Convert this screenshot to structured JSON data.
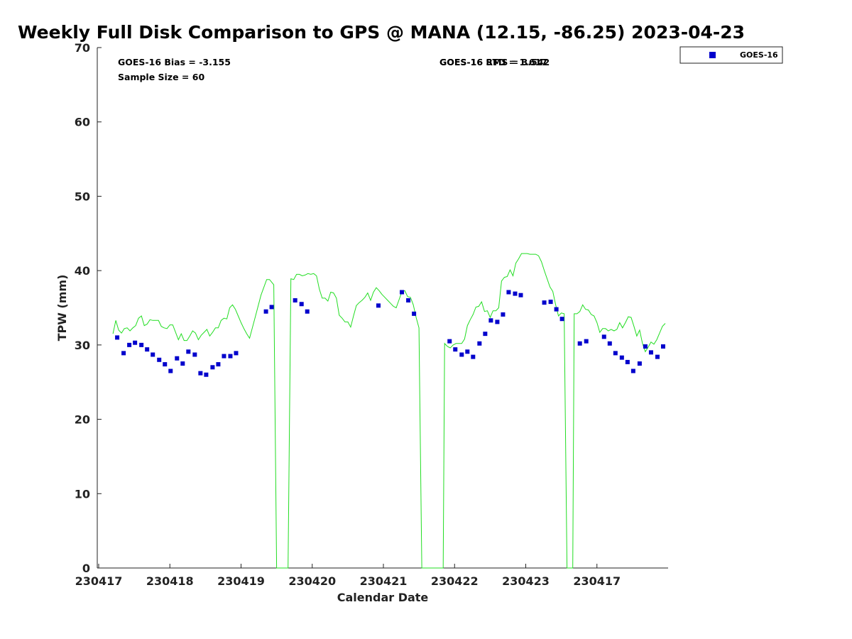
{
  "chart_data": {
    "type": "scatter",
    "title": "Weekly Full Disk Comparison to GPS @ MANA (12.15, -86.25) 2023-04-23",
    "xlabel": "Calendar Date",
    "ylabel": "TPW (mm)",
    "xlim": [
      -0.02,
      8.0
    ],
    "ylim": [
      0,
      70
    ],
    "yticks": [
      0,
      10,
      20,
      30,
      40,
      50,
      60,
      70
    ],
    "xtick_positions": [
      0,
      1,
      2,
      3,
      4,
      5,
      6,
      7
    ],
    "xtick_labels": [
      "230417",
      "230418",
      "230419",
      "230420",
      "230421",
      "230422",
      "230423",
      "230417"
    ],
    "grid": false,
    "legend": {
      "position": "top-right",
      "entries": [
        {
          "label": "GOES-16",
          "color": "#0000cc",
          "marker": "square"
        }
      ]
    },
    "annotations": {
      "bias": "GOES-16 Bias = -3.155",
      "sample_size": "Sample Size = 60",
      "std": "GOES-16 STD = 1.617",
      "rms": "GOES-16 RMS = 3.542"
    },
    "series": [
      {
        "name": "GOES-16",
        "kind": "scatter",
        "color": "#0000cc",
        "points": [
          [
            0.26,
            31.0
          ],
          [
            0.35,
            28.9
          ],
          [
            0.43,
            30.0
          ],
          [
            0.51,
            30.3
          ],
          [
            0.6,
            30.0
          ],
          [
            0.68,
            29.4
          ],
          [
            0.76,
            28.7
          ],
          [
            0.85,
            28.0
          ],
          [
            0.93,
            27.4
          ],
          [
            1.01,
            26.5
          ],
          [
            1.1,
            28.2
          ],
          [
            1.18,
            27.5
          ],
          [
            1.26,
            29.1
          ],
          [
            1.35,
            28.7
          ],
          [
            1.43,
            26.2
          ],
          [
            1.51,
            26.0
          ],
          [
            1.6,
            27.0
          ],
          [
            1.68,
            27.4
          ],
          [
            1.76,
            28.5
          ],
          [
            1.85,
            28.5
          ],
          [
            1.93,
            28.9
          ],
          [
            2.35,
            34.5
          ],
          [
            2.43,
            35.1
          ],
          [
            2.76,
            36.0
          ],
          [
            2.85,
            35.5
          ],
          [
            2.93,
            34.5
          ],
          [
            3.93,
            35.3
          ],
          [
            4.26,
            37.1
          ],
          [
            4.35,
            36.0
          ],
          [
            4.43,
            34.2
          ],
          [
            4.93,
            30.5
          ],
          [
            5.01,
            29.4
          ],
          [
            5.1,
            28.7
          ],
          [
            5.18,
            29.1
          ],
          [
            5.26,
            28.4
          ],
          [
            5.35,
            30.2
          ],
          [
            5.43,
            31.5
          ],
          [
            5.51,
            33.3
          ],
          [
            5.6,
            33.1
          ],
          [
            5.68,
            34.1
          ],
          [
            5.76,
            37.1
          ],
          [
            5.85,
            36.9
          ],
          [
            5.93,
            36.7
          ],
          [
            6.26,
            35.7
          ],
          [
            6.35,
            35.8
          ],
          [
            6.43,
            34.8
          ],
          [
            6.51,
            33.5
          ],
          [
            6.76,
            30.2
          ],
          [
            6.85,
            30.5
          ],
          [
            7.1,
            31.1
          ],
          [
            7.18,
            30.2
          ],
          [
            7.26,
            28.9
          ],
          [
            7.35,
            28.3
          ],
          [
            7.43,
            27.7
          ],
          [
            7.51,
            26.5
          ],
          [
            7.6,
            27.5
          ],
          [
            7.68,
            29.8
          ],
          [
            7.76,
            29.0
          ],
          [
            7.85,
            28.4
          ],
          [
            7.93,
            29.8
          ]
        ]
      },
      {
        "name": "GPS",
        "kind": "line",
        "color": "#22dd22",
        "points": [
          [
            0.2,
            31.5
          ],
          [
            0.24,
            33.3
          ],
          [
            0.28,
            32.0
          ],
          [
            0.32,
            31.6
          ],
          [
            0.36,
            32.2
          ],
          [
            0.4,
            32.3
          ],
          [
            0.44,
            31.9
          ],
          [
            0.48,
            32.3
          ],
          [
            0.52,
            32.6
          ],
          [
            0.56,
            33.6
          ],
          [
            0.6,
            33.9
          ],
          [
            0.64,
            32.6
          ],
          [
            0.68,
            32.8
          ],
          [
            0.72,
            33.4
          ],
          [
            0.76,
            33.3
          ],
          [
            0.8,
            33.3
          ],
          [
            0.84,
            33.3
          ],
          [
            0.88,
            32.5
          ],
          [
            0.92,
            32.3
          ],
          [
            0.96,
            32.2
          ],
          [
            1.0,
            32.7
          ],
          [
            1.04,
            32.7
          ],
          [
            1.08,
            31.7
          ],
          [
            1.12,
            30.7
          ],
          [
            1.16,
            31.5
          ],
          [
            1.2,
            30.6
          ],
          [
            1.24,
            30.6
          ],
          [
            1.28,
            31.2
          ],
          [
            1.32,
            31.9
          ],
          [
            1.36,
            31.6
          ],
          [
            1.4,
            30.7
          ],
          [
            1.44,
            31.3
          ],
          [
            1.48,
            31.7
          ],
          [
            1.52,
            32.1
          ],
          [
            1.56,
            31.2
          ],
          [
            1.6,
            31.7
          ],
          [
            1.64,
            32.3
          ],
          [
            1.68,
            32.3
          ],
          [
            1.72,
            33.3
          ],
          [
            1.76,
            33.6
          ],
          [
            1.8,
            33.5
          ],
          [
            1.84,
            35.0
          ],
          [
            1.88,
            35.4
          ],
          [
            1.92,
            34.8
          ],
          [
            1.96,
            33.9
          ],
          [
            2.0,
            33.0
          ],
          [
            2.04,
            32.2
          ],
          [
            2.08,
            31.5
          ],
          [
            2.12,
            30.9
          ],
          [
            2.2,
            33.8
          ],
          [
            2.28,
            36.7
          ],
          [
            2.36,
            38.8
          ],
          [
            2.4,
            38.8
          ],
          [
            2.46,
            38.1
          ],
          [
            2.5,
            0
          ],
          [
            2.66,
            0
          ],
          [
            2.7,
            38.9
          ],
          [
            2.74,
            38.8
          ],
          [
            2.78,
            39.5
          ],
          [
            2.82,
            39.5
          ],
          [
            2.86,
            39.3
          ],
          [
            2.9,
            39.4
          ],
          [
            2.94,
            39.6
          ],
          [
            2.98,
            39.5
          ],
          [
            3.02,
            39.6
          ],
          [
            3.06,
            39.3
          ],
          [
            3.1,
            37.5
          ],
          [
            3.14,
            36.3
          ],
          [
            3.18,
            36.3
          ],
          [
            3.22,
            35.9
          ],
          [
            3.26,
            37.1
          ],
          [
            3.3,
            37.0
          ],
          [
            3.34,
            36.3
          ],
          [
            3.38,
            34.0
          ],
          [
            3.42,
            33.6
          ],
          [
            3.46,
            33.1
          ],
          [
            3.5,
            33.1
          ],
          [
            3.54,
            32.4
          ],
          [
            3.58,
            33.9
          ],
          [
            3.62,
            35.3
          ],
          [
            3.66,
            35.7
          ],
          [
            3.7,
            36.0
          ],
          [
            3.74,
            36.4
          ],
          [
            3.78,
            37.0
          ],
          [
            3.82,
            36.0
          ],
          [
            3.86,
            37.1
          ],
          [
            3.9,
            37.7
          ],
          [
            3.94,
            37.3
          ],
          [
            3.98,
            36.8
          ],
          [
            4.02,
            36.4
          ],
          [
            4.06,
            36.0
          ],
          [
            4.1,
            35.6
          ],
          [
            4.14,
            35.2
          ],
          [
            4.18,
            35.0
          ],
          [
            4.22,
            36.1
          ],
          [
            4.26,
            37.2
          ],
          [
            4.3,
            37.3
          ],
          [
            4.34,
            36.5
          ],
          [
            4.38,
            36.4
          ],
          [
            4.42,
            35.4
          ],
          [
            4.46,
            33.7
          ],
          [
            4.5,
            32.3
          ],
          [
            4.54,
            0
          ],
          [
            4.84,
            0
          ],
          [
            4.86,
            30.2
          ],
          [
            4.9,
            29.8
          ],
          [
            4.94,
            29.6
          ],
          [
            4.98,
            30.0
          ],
          [
            5.02,
            30.2
          ],
          [
            5.06,
            30.2
          ],
          [
            5.1,
            30.2
          ],
          [
            5.14,
            30.8
          ],
          [
            5.18,
            32.6
          ],
          [
            5.22,
            33.4
          ],
          [
            5.26,
            34.1
          ],
          [
            5.3,
            35.1
          ],
          [
            5.34,
            35.2
          ],
          [
            5.38,
            35.8
          ],
          [
            5.42,
            34.5
          ],
          [
            5.46,
            34.6
          ],
          [
            5.5,
            33.7
          ],
          [
            5.54,
            34.6
          ],
          [
            5.58,
            34.6
          ],
          [
            5.62,
            35.0
          ],
          [
            5.66,
            38.6
          ],
          [
            5.7,
            39.1
          ],
          [
            5.74,
            39.2
          ],
          [
            5.78,
            40.1
          ],
          [
            5.82,
            39.3
          ],
          [
            5.86,
            41.0
          ],
          [
            5.9,
            41.6
          ],
          [
            5.94,
            42.3
          ],
          [
            5.98,
            42.3
          ],
          [
            6.02,
            42.3
          ],
          [
            6.06,
            42.2
          ],
          [
            6.1,
            42.2
          ],
          [
            6.14,
            42.2
          ],
          [
            6.18,
            42.0
          ],
          [
            6.22,
            41.2
          ],
          [
            6.26,
            40.0
          ],
          [
            6.3,
            38.9
          ],
          [
            6.34,
            37.8
          ],
          [
            6.38,
            37.2
          ],
          [
            6.42,
            35.4
          ],
          [
            6.46,
            33.9
          ],
          [
            6.5,
            34.3
          ],
          [
            6.54,
            34.2
          ],
          [
            6.58,
            0
          ],
          [
            6.66,
            0
          ],
          [
            6.68,
            34.2
          ],
          [
            6.72,
            34.2
          ],
          [
            6.76,
            34.5
          ],
          [
            6.8,
            35.4
          ],
          [
            6.84,
            34.8
          ],
          [
            6.88,
            34.7
          ],
          [
            6.92,
            34.1
          ],
          [
            6.96,
            33.9
          ],
          [
            7.0,
            33.0
          ],
          [
            7.04,
            31.7
          ],
          [
            7.08,
            32.2
          ],
          [
            7.12,
            32.2
          ],
          [
            7.16,
            31.9
          ],
          [
            7.2,
            32.1
          ],
          [
            7.24,
            31.9
          ],
          [
            7.28,
            32.1
          ],
          [
            7.32,
            33.0
          ],
          [
            7.36,
            32.3
          ],
          [
            7.4,
            33.0
          ],
          [
            7.44,
            33.8
          ],
          [
            7.48,
            33.7
          ],
          [
            7.52,
            32.5
          ],
          [
            7.56,
            31.2
          ],
          [
            7.6,
            32.0
          ],
          [
            7.64,
            30.2
          ],
          [
            7.68,
            29.1
          ],
          [
            7.72,
            29.7
          ],
          [
            7.76,
            30.4
          ],
          [
            7.8,
            30.1
          ],
          [
            7.84,
            30.7
          ],
          [
            7.88,
            31.6
          ],
          [
            7.92,
            32.5
          ],
          [
            7.96,
            32.9
          ]
        ]
      }
    ]
  }
}
